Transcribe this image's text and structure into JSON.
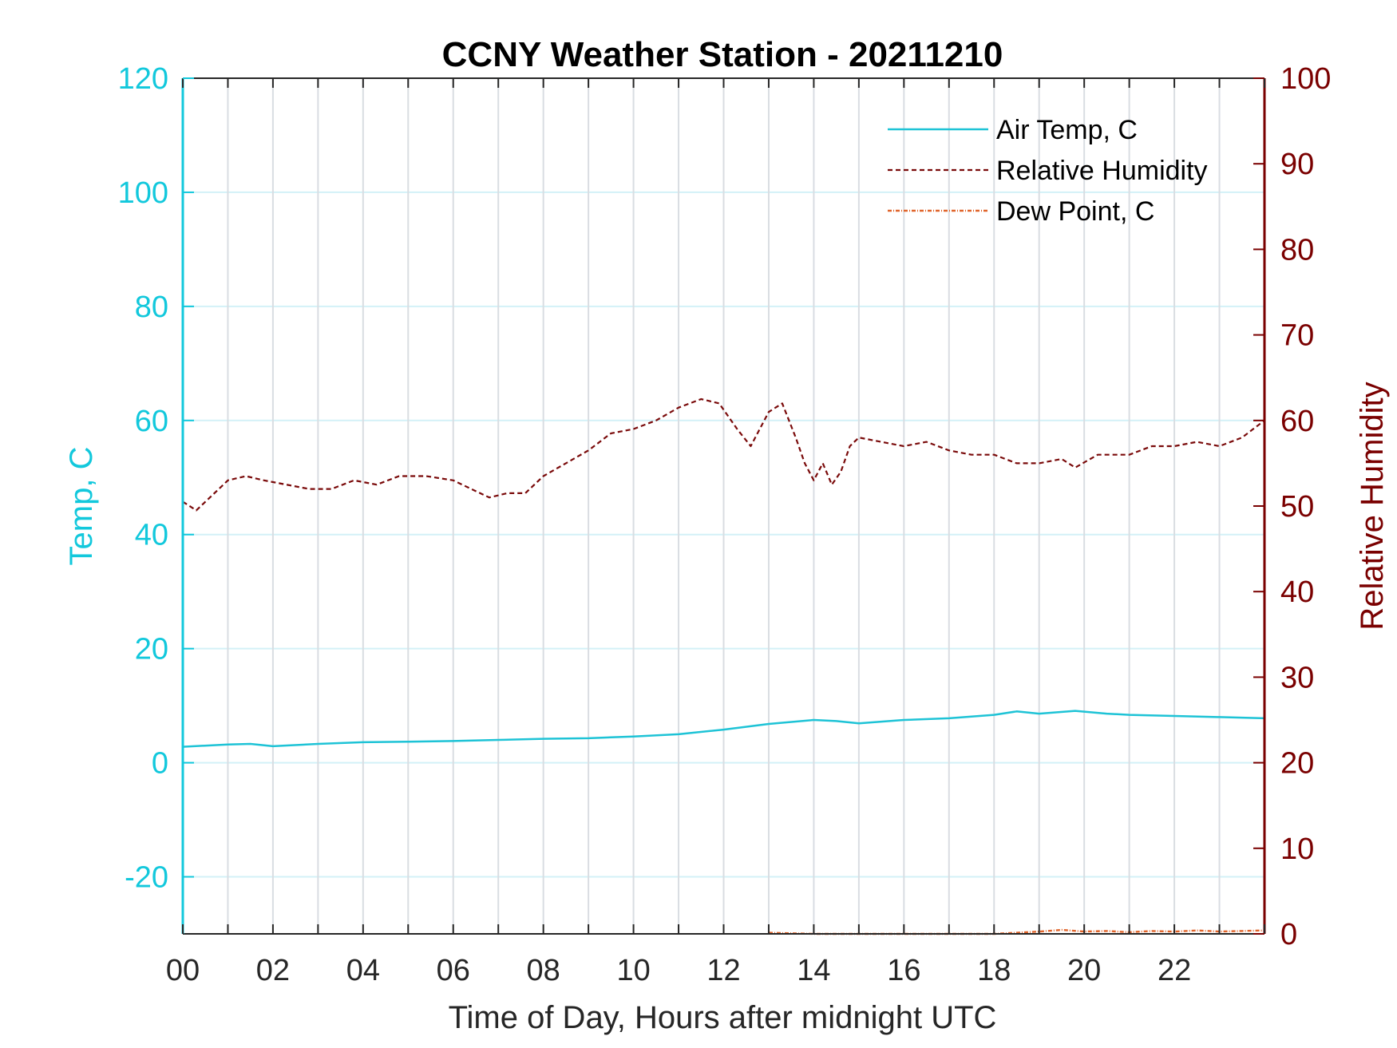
{
  "chart_data": {
    "type": "line",
    "title": "CCNY Weather Station - 20211210",
    "xlabel": "Time of Day, Hours after midnight UTC",
    "ylabel_left": "Temp, C",
    "ylabel_right": "Relative Humidity",
    "xlim": [
      0,
      24
    ],
    "ylim_left": [
      -30,
      120
    ],
    "ylim_right": [
      0,
      100
    ],
    "x_ticks": [
      0,
      2,
      4,
      6,
      8,
      10,
      12,
      14,
      16,
      18,
      20,
      22
    ],
    "x_tick_labels": [
      "00",
      "02",
      "04",
      "06",
      "08",
      "10",
      "12",
      "14",
      "16",
      "18",
      "20",
      "22"
    ],
    "y_left_ticks": [
      120,
      100,
      80,
      60,
      40,
      20,
      0,
      -20
    ],
    "y_left_tick_labels": [
      "120",
      "100",
      "80",
      "60",
      "40",
      "20",
      "0",
      "-20"
    ],
    "y_right_ticks": [
      100,
      90,
      80,
      70,
      60,
      50,
      40,
      30,
      20,
      10,
      0
    ],
    "y_right_tick_labels": [
      "100",
      "90",
      "80",
      "70",
      "60",
      "50",
      "40",
      "30",
      "20",
      "10",
      "0"
    ],
    "grid": true,
    "legend_position": "top-right",
    "colors": {
      "temp_axis": "#12c8dc",
      "rh_axis": "#7a0000",
      "air_temp": "#1ec3d6",
      "rel_humidity": "#7a0a0a",
      "dew_point": "#e0642a",
      "grid_vertical": "#d9dde2",
      "grid_horizontal": "#d3f1f7"
    },
    "series": [
      {
        "name": "Air Temp, C",
        "axis": "left",
        "style": "solid",
        "x": [
          0,
          1,
          1.5,
          2,
          3,
          4,
          5,
          6,
          7,
          8,
          9,
          10,
          11,
          12,
          13,
          14,
          14.5,
          15,
          16,
          17,
          18,
          18.5,
          19,
          19.8,
          20.5,
          21,
          22,
          23,
          24
        ],
        "y": [
          2.8,
          3.2,
          3.3,
          2.9,
          3.3,
          3.6,
          3.7,
          3.8,
          4.0,
          4.2,
          4.3,
          4.6,
          5.0,
          5.8,
          6.8,
          7.5,
          7.3,
          6.9,
          7.5,
          7.8,
          8.4,
          9.0,
          8.6,
          9.1,
          8.6,
          8.4,
          8.2,
          8.0,
          7.8
        ]
      },
      {
        "name": "Relative Humidity",
        "axis": "right",
        "style": "dashed",
        "x": [
          0,
          0.3,
          0.6,
          1,
          1.4,
          1.8,
          2.3,
          2.8,
          3.3,
          3.8,
          4.3,
          4.8,
          5.4,
          6,
          6.4,
          6.8,
          7.2,
          7.6,
          8,
          8.5,
          9,
          9.5,
          10,
          10.5,
          11,
          11.5,
          11.9,
          12.3,
          12.6,
          13,
          13.3,
          13.6,
          13.8,
          14,
          14.2,
          14.4,
          14.6,
          14.8,
          15,
          15.5,
          16,
          16.5,
          17,
          17.5,
          18,
          18.5,
          19,
          19.5,
          19.8,
          20.3,
          21,
          21.5,
          22,
          22.5,
          23,
          23.5,
          24
        ],
        "y": [
          50.5,
          49.5,
          51,
          53,
          53.5,
          53,
          52.5,
          52,
          52,
          53,
          52.5,
          53.5,
          53.5,
          53,
          52,
          51,
          51.5,
          51.5,
          53.5,
          55,
          56.5,
          58.5,
          59,
          60,
          61.5,
          62.5,
          62,
          59,
          57,
          61,
          62,
          58,
          55,
          53,
          55,
          52.5,
          54,
          57,
          58,
          57.5,
          57,
          57.5,
          56.5,
          56,
          56,
          55,
          55,
          55.5,
          54.5,
          56,
          56,
          57,
          57,
          57.5,
          57,
          58,
          60
        ]
      },
      {
        "name": "Dew Point, C",
        "axis": "left",
        "style": "dash-dot",
        "x": [
          13.0,
          14.0,
          15.0,
          16.0,
          17.0,
          18.0,
          18.5,
          19.0,
          19.5,
          20.0,
          20.5,
          21.0,
          21.5,
          22.0,
          22.5,
          23.0,
          23.5,
          24.0
        ],
        "y": [
          -29.8,
          -30.0,
          -30.0,
          -30.0,
          -30.0,
          -30.0,
          -29.8,
          -29.6,
          -29.3,
          -29.6,
          -29.5,
          -29.7,
          -29.5,
          -29.6,
          -29.4,
          -29.6,
          -29.5,
          -29.4
        ]
      }
    ]
  }
}
